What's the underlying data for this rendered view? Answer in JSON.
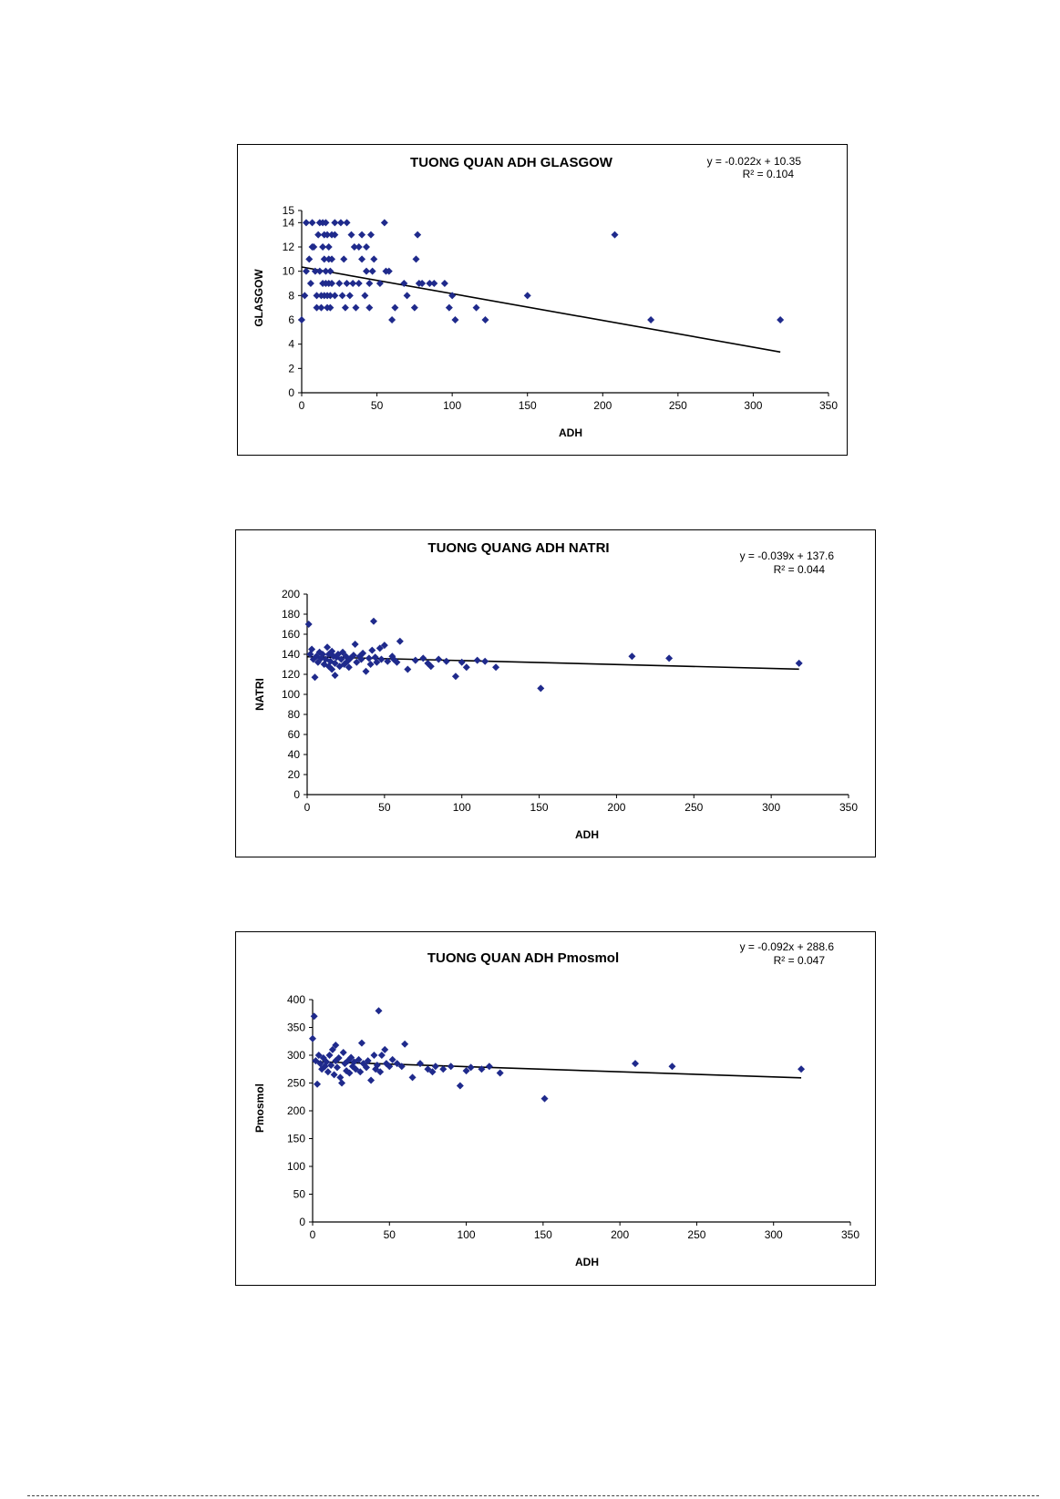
{
  "chart_data": [
    {
      "type": "scatter",
      "title": "TUONG QUAN ADH GLASGOW",
      "equation": "y = -0.022x + 10.35",
      "r2": "R² = 0.104",
      "xlabel": "ADH",
      "ylabel": "GLASGOW",
      "xlim": [
        0,
        350
      ],
      "ylim": [
        0,
        15
      ],
      "xticks": [
        0,
        50,
        100,
        150,
        200,
        250,
        300,
        350
      ],
      "yticks": [
        0,
        2,
        4,
        6,
        8,
        10,
        12,
        14,
        15
      ],
      "trendline": {
        "slope": -0.022,
        "intercept": 10.35,
        "x_range": [
          0,
          318
        ]
      },
      "marker_color": "#1f2a8c",
      "x": [
        0,
        2,
        3,
        3,
        5,
        6,
        7,
        7,
        8,
        9,
        10,
        10,
        11,
        12,
        12,
        13,
        13,
        14,
        14,
        14,
        15,
        15,
        15,
        16,
        16,
        16,
        17,
        17,
        17,
        18,
        18,
        18,
        19,
        19,
        19,
        20,
        20,
        20,
        22,
        22,
        22,
        25,
        26,
        27,
        28,
        29,
        30,
        30,
        32,
        33,
        34,
        35,
        36,
        38,
        38,
        40,
        40,
        42,
        43,
        43,
        45,
        45,
        46,
        47,
        48,
        52,
        55,
        56,
        58,
        60,
        62,
        68,
        70,
        75,
        76,
        77,
        78,
        80,
        85,
        88,
        95,
        98,
        100,
        102,
        116,
        122,
        150,
        208,
        232,
        318
      ],
      "y": [
        6,
        8,
        14,
        10,
        11,
        9,
        12,
        14,
        12,
        10,
        8,
        7,
        13,
        14,
        10,
        8,
        7,
        12,
        14,
        9,
        13,
        11,
        8,
        10,
        14,
        9,
        13,
        8,
        7,
        12,
        11,
        9,
        10,
        8,
        7,
        13,
        11,
        9,
        14,
        13,
        8,
        9,
        14,
        8,
        11,
        7,
        14,
        9,
        8,
        13,
        9,
        12,
        7,
        12,
        9,
        13,
        11,
        8,
        12,
        10,
        9,
        7,
        13,
        10,
        11,
        9,
        14,
        10,
        10,
        6,
        7,
        9,
        8,
        7,
        11,
        13,
        9,
        9,
        9,
        9,
        9,
        7,
        8,
        6,
        7,
        6,
        8,
        13,
        6,
        6
      ]
    },
    {
      "type": "scatter",
      "title": "TUONG QUANG ADH NATRI",
      "equation": "y = -0.039x + 137.6",
      "r2": "R² = 0.044",
      "xlabel": "ADH",
      "ylabel": "NATRI",
      "xlim": [
        0,
        350
      ],
      "ylim": [
        0,
        200
      ],
      "xticks": [
        0,
        50,
        100,
        150,
        200,
        250,
        300,
        350
      ],
      "yticks": [
        0,
        20,
        40,
        60,
        80,
        100,
        120,
        140,
        160,
        180,
        200
      ],
      "trendline": {
        "slope": -0.039,
        "intercept": 137.6,
        "x_range": [
          0,
          318
        ]
      },
      "marker_color": "#1f2a8c",
      "x": [
        1,
        2,
        3,
        4,
        5,
        6,
        7,
        8,
        9,
        10,
        11,
        12,
        13,
        14,
        14,
        15,
        16,
        16,
        17,
        18,
        18,
        19,
        20,
        21,
        22,
        23,
        24,
        25,
        26,
        27,
        28,
        30,
        31,
        32,
        34,
        35,
        36,
        38,
        40,
        41,
        42,
        43,
        44,
        45,
        47,
        48,
        50,
        52,
        55,
        56,
        58,
        60,
        65,
        70,
        75,
        78,
        80,
        85,
        90,
        96,
        100,
        103,
        110,
        115,
        122,
        151,
        210,
        234,
        318
      ],
      "y": [
        170,
        140,
        145,
        135,
        117,
        138,
        132,
        142,
        136,
        140,
        130,
        135,
        147,
        128,
        140,
        133,
        143,
        125,
        138,
        131,
        119,
        137,
        140,
        128,
        135,
        142,
        130,
        138,
        133,
        127,
        136,
        139,
        150,
        132,
        138,
        135,
        141,
        123,
        136,
        130,
        144,
        173,
        137,
        132,
        146,
        135,
        149,
        133,
        138,
        135,
        132,
        153,
        125,
        134,
        136,
        131,
        128,
        135,
        133,
        118,
        132,
        127,
        134,
        133,
        127,
        106,
        138,
        136,
        131
      ]
    },
    {
      "type": "scatter",
      "title": "TUONG QUAN ADH Pmosmol",
      "equation": "y = -0.092x + 288.6",
      "r2": "R² = 0.047",
      "xlabel": "ADH",
      "ylabel": "Pmosmol",
      "xlim": [
        0,
        350
      ],
      "ylim": [
        0,
        400
      ],
      "xticks": [
        0,
        50,
        100,
        150,
        200,
        250,
        300,
        350
      ],
      "yticks": [
        0,
        50,
        100,
        150,
        200,
        250,
        300,
        350,
        400
      ],
      "trendline": {
        "slope": -0.092,
        "intercept": 288.6,
        "x_range": [
          0,
          318
        ]
      },
      "marker_color": "#1f2a8c",
      "x": [
        0,
        1,
        2,
        3,
        4,
        5,
        6,
        7,
        8,
        9,
        10,
        11,
        12,
        13,
        14,
        15,
        15,
        16,
        17,
        18,
        19,
        20,
        21,
        22,
        23,
        24,
        25,
        26,
        27,
        28,
        30,
        31,
        32,
        33,
        35,
        36,
        38,
        40,
        41,
        42,
        43,
        44,
        45,
        47,
        48,
        50,
        52,
        55,
        58,
        60,
        65,
        70,
        75,
        78,
        80,
        85,
        90,
        96,
        100,
        103,
        110,
        115,
        122,
        151,
        210,
        234,
        318
      ],
      "y": [
        330,
        370,
        290,
        248,
        300,
        285,
        275,
        295,
        280,
        288,
        270,
        300,
        282,
        310,
        265,
        318,
        290,
        278,
        295,
        260,
        250,
        305,
        285,
        272,
        290,
        268,
        296,
        280,
        288,
        275,
        292,
        270,
        322,
        285,
        278,
        290,
        255,
        300,
        275,
        282,
        380,
        270,
        300,
        310,
        285,
        280,
        292,
        285,
        280,
        320,
        260,
        285,
        275,
        270,
        280,
        275,
        280,
        245,
        272,
        278,
        275,
        280,
        268,
        222,
        285,
        280,
        275
      ]
    }
  ]
}
